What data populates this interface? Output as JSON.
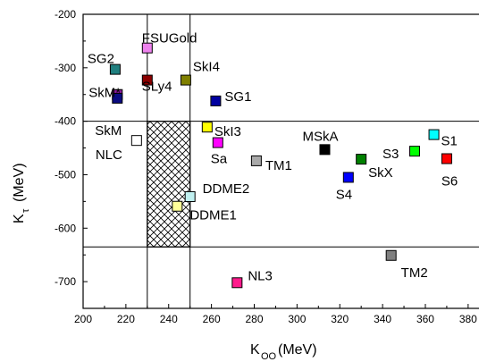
{
  "chart_data": {
    "type": "scatter",
    "xlabel": {
      "main": "K",
      "sub": "OO",
      "unit": "(MeV)"
    },
    "ylabel": {
      "main": "K",
      "sub": "τ",
      "unit": "(MeV)"
    },
    "xlim": [
      200,
      388
    ],
    "ylim": [
      -750,
      -200
    ],
    "x_ticks": [
      200,
      220,
      240,
      260,
      280,
      300,
      320,
      340,
      360,
      380
    ],
    "y_ticks": [
      -200,
      -300,
      -400,
      -500,
      -600,
      -700
    ],
    "grid": false,
    "points": [
      {
        "label": "SG2",
        "x": 215,
        "y": -303,
        "color": "#1f7f7f"
      },
      {
        "label": "SkM*",
        "x": 216,
        "y": -350,
        "color": "#8b1a9b"
      },
      {
        "label": "SkM",
        "x": 216,
        "y": -357,
        "color": "#0a0a80"
      },
      {
        "label": "NLC",
        "x": 225,
        "y": -436,
        "color": "#ffffff"
      },
      {
        "label": "FSUGold",
        "x": 230,
        "y": -263,
        "color": "#ee82ee"
      },
      {
        "label": "SLy4",
        "x": 230,
        "y": -323,
        "color": "#8b0000"
      },
      {
        "label": "SkI4",
        "x": 248,
        "y": -323,
        "color": "#808000"
      },
      {
        "label": "SG1",
        "x": 262,
        "y": -362,
        "color": "#0000a0"
      },
      {
        "label": "SkI3",
        "x": 258,
        "y": -411,
        "color": "#ffff00"
      },
      {
        "label": "Sa",
        "x": 263,
        "y": -440,
        "color": "#ff00ff"
      },
      {
        "label": "TM1",
        "x": 281,
        "y": -474,
        "color": "#a9a9a9"
      },
      {
        "label": "MSkA",
        "x": 313,
        "y": -453,
        "color": "#000000"
      },
      {
        "label": "SkX",
        "x": 330,
        "y": -471,
        "color": "#008000"
      },
      {
        "label": "S4",
        "x": 324,
        "y": -505,
        "color": "#0000ff"
      },
      {
        "label": "S3",
        "x": 355,
        "y": -456,
        "color": "#00ff00"
      },
      {
        "label": "S1",
        "x": 364,
        "y": -425,
        "color": "#00ffff"
      },
      {
        "label": "S6",
        "x": 370,
        "y": -470,
        "color": "#ff0000"
      },
      {
        "label": "DDME2",
        "x": 250,
        "y": -541,
        "color": "#c0f0f0"
      },
      {
        "label": "DDME1",
        "x": 244,
        "y": -559,
        "color": "#ffff99"
      },
      {
        "label": "TM2",
        "x": 344,
        "y": -651,
        "color": "#808080"
      },
      {
        "label": "NL3",
        "x": 272,
        "y": -702,
        "color": "#ff1a8c"
      }
    ],
    "constraint_box": {
      "x": [
        230,
        250
      ],
      "y": [
        -635,
        -400
      ],
      "pattern": "crosshatch"
    },
    "reference_lines": {
      "vertical_x": [
        230,
        250
      ],
      "horizontal_y": [
        -400,
        -635
      ]
    }
  }
}
